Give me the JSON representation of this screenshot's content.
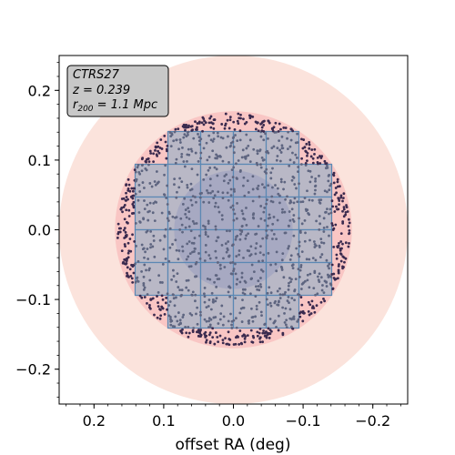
{
  "chart_data": {
    "type": "scatter",
    "title": "",
    "xlabel": "offset RA (deg)",
    "ylabel": "",
    "xlim": [
      0.25,
      -0.25
    ],
    "ylim": [
      -0.25,
      0.25
    ],
    "x_ticks": [
      0.2,
      0.1,
      0.0,
      -0.1,
      -0.2
    ],
    "x_tick_labels": [
      "0.2",
      "0.1",
      "0.0",
      "−0.1",
      "−0.2"
    ],
    "y_ticks": [
      0.2,
      0.1,
      0.0,
      -0.1,
      -0.2
    ],
    "y_tick_labels": [
      "0.2",
      "0.1",
      "0.0",
      "−0.1",
      "−0.2"
    ],
    "info_box": {
      "name": "CTRS27",
      "redshift": "z = 0.239",
      "r200_symbol": "r",
      "r200_subscript": "200",
      "r200_value": " = 1.1 Mpc",
      "placement": "top-left"
    },
    "circles": [
      {
        "role": "outer halo",
        "center": [
          0.0,
          0.0
        ],
        "radius_deg": 0.25,
        "color": "#fbe3dc"
      },
      {
        "role": "r200 region",
        "center": [
          0.0,
          0.0
        ],
        "radius_deg": 0.17,
        "color": "#f9c6c4"
      },
      {
        "role": "core",
        "center": [
          0.0,
          0.0
        ],
        "radius_deg": 0.085,
        "color": "#9a79ad"
      }
    ],
    "mosaic": {
      "tile_size_deg": 0.047,
      "fill": "#a7b4c6",
      "edge": "#5b88b4",
      "rows": [
        {
          "y_range": [
            0.094,
            0.141
          ],
          "x_columns": [
            0.094,
            0.047,
            0.0,
            -0.047
          ]
        },
        {
          "y_range": [
            0.047,
            0.094
          ],
          "x_columns": [
            0.141,
            0.094,
            0.047,
            0.0,
            -0.047,
            -0.094
          ]
        },
        {
          "y_range": [
            0.0,
            0.047
          ],
          "x_columns": [
            0.141,
            0.094,
            0.047,
            0.0,
            -0.047,
            -0.094
          ]
        },
        {
          "y_range": [
            -0.047,
            0.0
          ],
          "x_columns": [
            0.141,
            0.094,
            0.047,
            0.0,
            -0.047,
            -0.094
          ]
        },
        {
          "y_range": [
            -0.094,
            -0.047
          ],
          "x_columns": [
            0.141,
            0.094,
            0.047,
            0.0,
            -0.047,
            -0.094
          ]
        },
        {
          "y_range": [
            -0.141,
            -0.094
          ],
          "x_columns": [
            0.094,
            0.047,
            0.0,
            -0.047
          ]
        }
      ]
    },
    "points": {
      "description_from_image": "member galaxies scattered within r200 circle",
      "approx_count": 1400,
      "max_radius_deg": 0.167,
      "color_inside_mosaic": "#5e6580",
      "color_outside_mosaic": "#3a2a4e"
    },
    "grid": false,
    "legend": "none"
  }
}
